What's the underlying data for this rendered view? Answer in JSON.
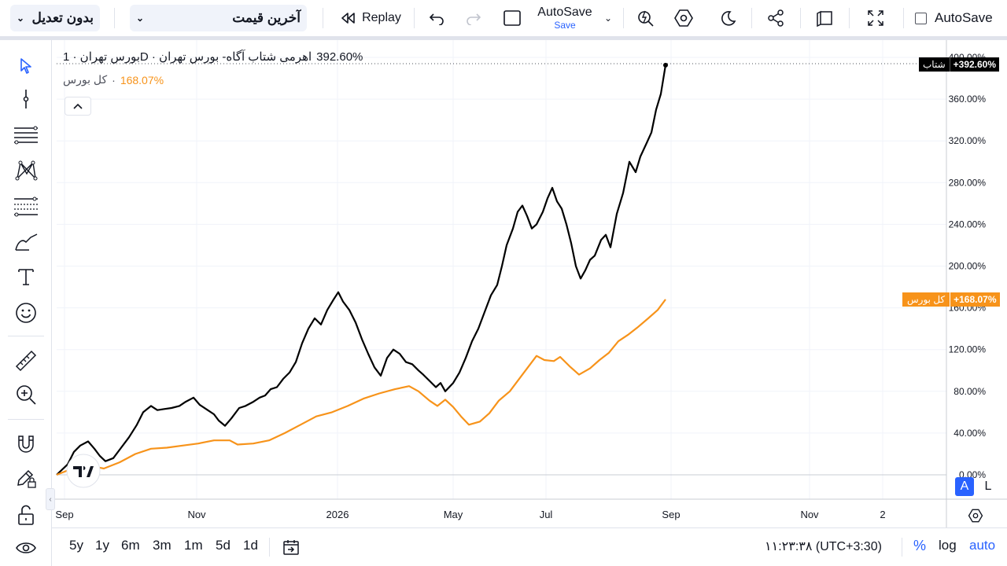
{
  "toolbar": {
    "adjust_dropdown": "بدون تعدیل",
    "price_dropdown": "آخرین قیمت",
    "replay_label": "Replay",
    "autosave_title": "AutoSave",
    "autosave_sub": "Save",
    "autosave_checkbox_label": "AutoSave"
  },
  "legend": {
    "main_title": "بورس تهران · 1D · اهرمی شتاب آگاه- بورس تهران",
    "main_value": "392.60%",
    "compare_title": "کل بورس",
    "compare_value": "168.07%"
  },
  "price_tags": {
    "main_name": "شتاب",
    "main_value": "+392.60%",
    "compare_name": "کل بورس",
    "compare_value": "+168.07%"
  },
  "axis_buttons": {
    "auto_button": "A",
    "log_button": "L"
  },
  "bottom": {
    "ranges": [
      "5y",
      "1y",
      "6m",
      "3m",
      "1m",
      "5d",
      "1d"
    ],
    "clock": "۱۱:۲۳:۳۸ (UTC+3:30)",
    "percent_label": "%",
    "log_label": "log",
    "auto_label": "auto"
  },
  "colors": {
    "main_series": "#000000",
    "compare_series": "#f7931a",
    "accent": "#2962ff"
  },
  "chart_data": {
    "type": "line",
    "x_ticks": [
      "Sep",
      "Nov",
      "2026",
      "May",
      "Jul",
      "Sep",
      "Nov",
      "2"
    ],
    "y_ticks": [
      "0.00%",
      "40.00%",
      "80.00%",
      "120.00%",
      "160.00%",
      "200.00%",
      "240.00%",
      "280.00%",
      "320.00%",
      "360.00%",
      "400.00%"
    ],
    "ylim": [
      0,
      400
    ],
    "grid": true,
    "series": [
      {
        "name": "شتاب",
        "color": "#000000",
        "points": [
          [
            0,
            0
          ],
          [
            14,
            10
          ],
          [
            22,
            22
          ],
          [
            30,
            28
          ],
          [
            40,
            32
          ],
          [
            48,
            25
          ],
          [
            55,
            18
          ],
          [
            62,
            13
          ],
          [
            72,
            16
          ],
          [
            82,
            26
          ],
          [
            92,
            36
          ],
          [
            102,
            48
          ],
          [
            110,
            60
          ],
          [
            120,
            66
          ],
          [
            128,
            62
          ],
          [
            136,
            63
          ],
          [
            146,
            64
          ],
          [
            156,
            66
          ],
          [
            164,
            70
          ],
          [
            174,
            74
          ],
          [
            182,
            67
          ],
          [
            192,
            62
          ],
          [
            200,
            58
          ],
          [
            206,
            52
          ],
          [
            214,
            47
          ],
          [
            222,
            54
          ],
          [
            232,
            64
          ],
          [
            240,
            66
          ],
          [
            250,
            70
          ],
          [
            258,
            74
          ],
          [
            265,
            76
          ],
          [
            272,
            82
          ],
          [
            280,
            84
          ],
          [
            288,
            92
          ],
          [
            296,
            98
          ],
          [
            304,
            108
          ],
          [
            312,
            126
          ],
          [
            320,
            140
          ],
          [
            328,
            150
          ],
          [
            336,
            144
          ],
          [
            344,
            158
          ],
          [
            352,
            168
          ],
          [
            358,
            175
          ],
          [
            364,
            166
          ],
          [
            372,
            158
          ],
          [
            380,
            146
          ],
          [
            388,
            130
          ],
          [
            396,
            116
          ],
          [
            404,
            103
          ],
          [
            412,
            95
          ],
          [
            420,
            112
          ],
          [
            428,
            120
          ],
          [
            436,
            116
          ],
          [
            444,
            108
          ],
          [
            452,
            106
          ],
          [
            460,
            100
          ],
          [
            466,
            96
          ],
          [
            474,
            90
          ],
          [
            482,
            84
          ],
          [
            488,
            88
          ],
          [
            494,
            80
          ],
          [
            504,
            88
          ],
          [
            512,
            98
          ],
          [
            520,
            112
          ],
          [
            528,
            128
          ],
          [
            536,
            140
          ],
          [
            544,
            156
          ],
          [
            552,
            172
          ],
          [
            560,
            182
          ],
          [
            566,
            200
          ],
          [
            572,
            220
          ],
          [
            580,
            236
          ],
          [
            586,
            252
          ],
          [
            592,
            258
          ],
          [
            598,
            248
          ],
          [
            604,
            236
          ],
          [
            610,
            240
          ],
          [
            618,
            252
          ],
          [
            624,
            265
          ],
          [
            630,
            275
          ],
          [
            636,
            262
          ],
          [
            642,
            255
          ],
          [
            648,
            240
          ],
          [
            654,
            222
          ],
          [
            660,
            200
          ],
          [
            666,
            188
          ],
          [
            672,
            196
          ],
          [
            678,
            206
          ],
          [
            684,
            210
          ],
          [
            692,
            225
          ],
          [
            698,
            230
          ],
          [
            704,
            218
          ],
          [
            712,
            250
          ],
          [
            720,
            270
          ],
          [
            728,
            300
          ],
          [
            736,
            290
          ],
          [
            742,
            305
          ],
          [
            750,
            318
          ],
          [
            756,
            328
          ],
          [
            762,
            350
          ],
          [
            768,
            365
          ],
          [
            774,
            392.6
          ]
        ]
      },
      {
        "name": "کل بورس",
        "color": "#f7931a",
        "points": [
          [
            0,
            0
          ],
          [
            20,
            6
          ],
          [
            40,
            9
          ],
          [
            60,
            6
          ],
          [
            80,
            12
          ],
          [
            100,
            20
          ],
          [
            120,
            25
          ],
          [
            140,
            26
          ],
          [
            160,
            28
          ],
          [
            180,
            30
          ],
          [
            200,
            33
          ],
          [
            220,
            33
          ],
          [
            230,
            29
          ],
          [
            250,
            30
          ],
          [
            270,
            33
          ],
          [
            290,
            40
          ],
          [
            310,
            48
          ],
          [
            330,
            56
          ],
          [
            350,
            60
          ],
          [
            370,
            66
          ],
          [
            390,
            73
          ],
          [
            410,
            78
          ],
          [
            430,
            82
          ],
          [
            448,
            85
          ],
          [
            460,
            80
          ],
          [
            474,
            71
          ],
          [
            484,
            66
          ],
          [
            494,
            72
          ],
          [
            504,
            65
          ],
          [
            514,
            56
          ],
          [
            524,
            48
          ],
          [
            538,
            51
          ],
          [
            550,
            59
          ],
          [
            562,
            71
          ],
          [
            576,
            80
          ],
          [
            592,
            96
          ],
          [
            610,
            114
          ],
          [
            620,
            110
          ],
          [
            632,
            109
          ],
          [
            640,
            113
          ],
          [
            652,
            104
          ],
          [
            664,
            96
          ],
          [
            678,
            102
          ],
          [
            690,
            110
          ],
          [
            702,
            117
          ],
          [
            714,
            128
          ],
          [
            726,
            134
          ],
          [
            738,
            141
          ],
          [
            752,
            150
          ],
          [
            764,
            158
          ],
          [
            774,
            168.07
          ]
        ]
      }
    ]
  }
}
